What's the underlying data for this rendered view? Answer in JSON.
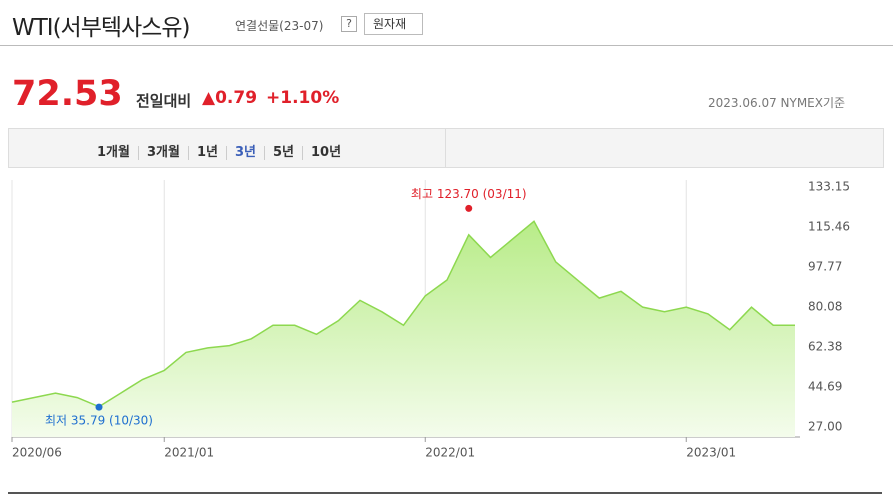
{
  "header": {
    "title": "WTI(서부텍사스유)",
    "subtitle": "연결선물(23-07)",
    "help": "?",
    "button": "원자재"
  },
  "quote": {
    "price": "72.53",
    "change_label": "전일대비",
    "change": "0.79",
    "change_pct": "+1.10%",
    "date": "2023.06.07 NYMEX기준"
  },
  "tabs": [
    "1개월",
    "3개월",
    "1년",
    "3년",
    "5년",
    "10년"
  ],
  "selected_tab": 3,
  "chart_data": {
    "type": "area",
    "color": "#8dd84f",
    "grid": true,
    "x": [
      "2020/06",
      "2020/07",
      "2020/08",
      "2020/09",
      "2020/10",
      "2020/11",
      "2020/12",
      "2021/01",
      "2021/02",
      "2021/03",
      "2021/04",
      "2021/05",
      "2021/06",
      "2021/07",
      "2021/08",
      "2021/09",
      "2021/10",
      "2021/11",
      "2021/12",
      "2022/01",
      "2022/02",
      "2022/03",
      "2022/04",
      "2022/05",
      "2022/06",
      "2022/07",
      "2022/08",
      "2022/09",
      "2022/10",
      "2022/11",
      "2022/12",
      "2023/01",
      "2023/02",
      "2023/03",
      "2023/04",
      "2023/05",
      "2023/06"
    ],
    "values": [
      38,
      40,
      42,
      40,
      36,
      42,
      48,
      52,
      60,
      62,
      63,
      66,
      72,
      72,
      68,
      74,
      83,
      78,
      72,
      85,
      92,
      112,
      102,
      110,
      118,
      100,
      92,
      84,
      87,
      80,
      78,
      80,
      77,
      70,
      80,
      72,
      72
    ],
    "ylim": [
      27,
      133.15
    ],
    "yticks": [
      {
        "value": 27,
        "label": "27.00"
      },
      44.69,
      62.38,
      80.08,
      97.77,
      115.46,
      133.15
    ],
    "xticks": [
      "2020/06",
      "2021/01",
      "2022/01",
      "2023/01"
    ],
    "annotations": [
      {
        "text": "최고 123.70 (03/11)",
        "x": "2022/03",
        "value": 123.7,
        "color": "#e0202a"
      },
      {
        "text": "최저 35.79 (10/30)",
        "x": "2020/10",
        "value": 35.79,
        "color": "#1f6fd0"
      }
    ]
  }
}
